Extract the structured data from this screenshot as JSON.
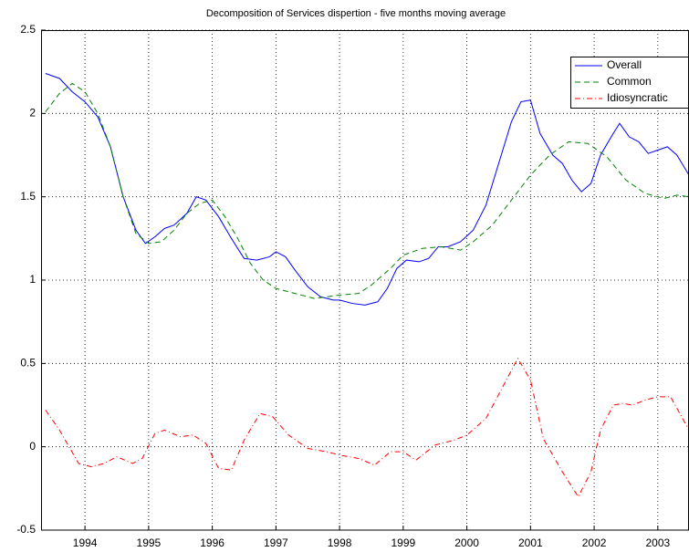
{
  "chart_data": {
    "type": "line",
    "title": "Decomposition of Services dispertion - five months moving average",
    "xlim": [
      1993.31,
      2003.49
    ],
    "xticks": [
      1994,
      1995,
      1996,
      1997,
      1998,
      1999,
      2000,
      2001,
      2002,
      2003
    ],
    "ylim": [
      -0.5,
      2.5
    ],
    "yticks": [
      -0.5,
      0,
      0.5,
      1,
      1.5,
      2,
      2.5
    ],
    "grid": true,
    "legend": "upper right",
    "series": [
      {
        "name": "Overall",
        "color": "#0000ff",
        "style": "solid",
        "x": [
          1993.38,
          1993.6,
          1993.8,
          1994.0,
          1994.2,
          1994.4,
          1994.6,
          1994.8,
          1994.95,
          1995.1,
          1995.25,
          1995.4,
          1995.6,
          1995.75,
          1995.9,
          1996.1,
          1996.3,
          1996.5,
          1996.7,
          1996.9,
          1997.0,
          1997.15,
          1997.3,
          1997.5,
          1997.7,
          1997.9,
          1998.0,
          1998.2,
          1998.4,
          1998.6,
          1998.75,
          1998.9,
          1999.05,
          1999.25,
          1999.4,
          1999.55,
          1999.7,
          1999.9,
          2000.1,
          2000.3,
          2000.5,
          2000.7,
          2000.85,
          2001.0,
          2001.15,
          2001.35,
          2001.5,
          2001.65,
          2001.8,
          2001.95,
          2002.1,
          2002.3,
          2002.4,
          2002.55,
          2002.7,
          2002.85,
          2003.0,
          2003.15,
          2003.3,
          2003.49
        ],
        "values": [
          2.24,
          2.21,
          2.13,
          2.07,
          1.98,
          1.8,
          1.5,
          1.3,
          1.22,
          1.26,
          1.31,
          1.33,
          1.4,
          1.5,
          1.48,
          1.38,
          1.25,
          1.13,
          1.12,
          1.14,
          1.17,
          1.14,
          1.06,
          0.96,
          0.9,
          0.88,
          0.88,
          0.86,
          0.85,
          0.87,
          0.95,
          1.07,
          1.12,
          1.11,
          1.13,
          1.2,
          1.2,
          1.23,
          1.3,
          1.45,
          1.7,
          1.95,
          2.07,
          2.08,
          1.88,
          1.75,
          1.7,
          1.6,
          1.53,
          1.58,
          1.75,
          1.88,
          1.94,
          1.86,
          1.83,
          1.76,
          1.78,
          1.8,
          1.75,
          1.63
        ]
      },
      {
        "name": "Common",
        "color": "#008000",
        "style": "dashed",
        "x": [
          1993.38,
          1993.6,
          1993.8,
          1994.0,
          1994.2,
          1994.4,
          1994.6,
          1994.8,
          1995.0,
          1995.2,
          1995.4,
          1995.6,
          1995.8,
          1996.0,
          1996.2,
          1996.4,
          1996.6,
          1996.8,
          1997.0,
          1997.3,
          1997.6,
          1998.0,
          1998.3,
          1998.5,
          1998.8,
          1999.0,
          1999.3,
          1999.6,
          1999.9,
          2000.1,
          2000.4,
          2000.7,
          2001.0,
          2001.3,
          2001.6,
          2001.9,
          2002.2,
          2002.5,
          2002.8,
          2003.1,
          2003.3,
          2003.49
        ],
        "values": [
          2.01,
          2.12,
          2.18,
          2.13,
          2.0,
          1.8,
          1.5,
          1.28,
          1.22,
          1.23,
          1.3,
          1.4,
          1.46,
          1.48,
          1.38,
          1.25,
          1.1,
          1.0,
          0.95,
          0.92,
          0.89,
          0.91,
          0.92,
          0.97,
          1.07,
          1.15,
          1.19,
          1.2,
          1.18,
          1.23,
          1.33,
          1.48,
          1.63,
          1.75,
          1.83,
          1.82,
          1.74,
          1.6,
          1.52,
          1.49,
          1.51,
          1.5
        ]
      },
      {
        "name": "Idiosyncratic",
        "color": "#ff0000",
        "style": "dashdot",
        "x": [
          1993.38,
          1993.6,
          1993.75,
          1993.9,
          1994.1,
          1994.3,
          1994.5,
          1994.75,
          1994.9,
          1995.1,
          1995.25,
          1995.5,
          1995.7,
          1995.9,
          1996.1,
          1996.3,
          1996.5,
          1996.75,
          1996.95,
          1997.2,
          1997.5,
          1997.8,
          1998.0,
          1998.3,
          1998.55,
          1998.8,
          1999.0,
          1999.2,
          1999.5,
          1999.8,
          2000.0,
          2000.3,
          2000.55,
          2000.8,
          2001.0,
          2001.2,
          2001.5,
          2001.75,
          2001.95,
          2002.1,
          2002.3,
          2002.45,
          2002.6,
          2002.8,
          2003.0,
          2003.2,
          2003.49
        ],
        "values": [
          0.22,
          0.1,
          0.0,
          -0.1,
          -0.12,
          -0.1,
          -0.06,
          -0.1,
          -0.07,
          0.08,
          0.1,
          0.06,
          0.07,
          0.02,
          -0.13,
          -0.14,
          0.04,
          0.2,
          0.18,
          0.07,
          -0.01,
          -0.03,
          -0.05,
          -0.07,
          -0.11,
          -0.03,
          -0.03,
          -0.08,
          0.01,
          0.04,
          0.07,
          0.17,
          0.35,
          0.53,
          0.4,
          0.05,
          -0.15,
          -0.3,
          -0.15,
          0.1,
          0.25,
          0.26,
          0.25,
          0.28,
          0.3,
          0.3,
          0.1
        ]
      }
    ]
  }
}
